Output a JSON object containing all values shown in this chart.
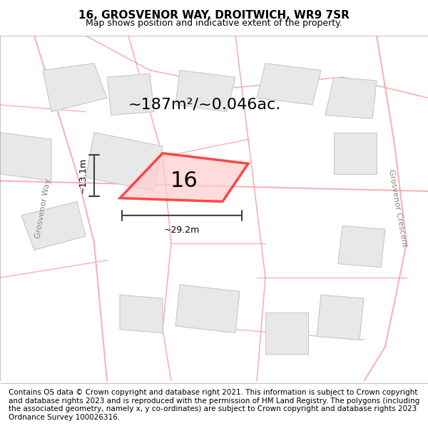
{
  "title": "16, GROSVENOR WAY, DROITWICH, WR9 7SR",
  "subtitle": "Map shows position and indicative extent of the property.",
  "footer": "Contains OS data © Crown copyright and database right 2021. This information is subject to Crown copyright and database rights 2023 and is reproduced with the permission of HM Land Registry. The polygons (including the associated geometry, namely x, y co-ordinates) are subject to Crown copyright and database rights 2023 Ordnance Survey 100026316.",
  "area_label": "~187m²/~0.046ac.",
  "width_label": "~29.2m",
  "height_label": "~13.1m",
  "property_number": "16",
  "bg_color": "#ffffff",
  "map_bg": "#f5f5f5",
  "road_color": "#f5a0a0",
  "building_color": "#e0e0e0",
  "building_edge": "#c0c0c0",
  "property_color_face": "rgba(255,200,200,0.3)",
  "property_edge": "#ff0000",
  "dim_color": "#404040",
  "title_fontsize": 11,
  "subtitle_fontsize": 9,
  "footer_fontsize": 7.5,
  "label_fontsize": 16,
  "number_fontsize": 22,
  "street1_label": "Grosvenor Way",
  "street2_label": "Grosvenor Crescent",
  "figsize": [
    6.0,
    6.25
  ],
  "dpi": 100
}
